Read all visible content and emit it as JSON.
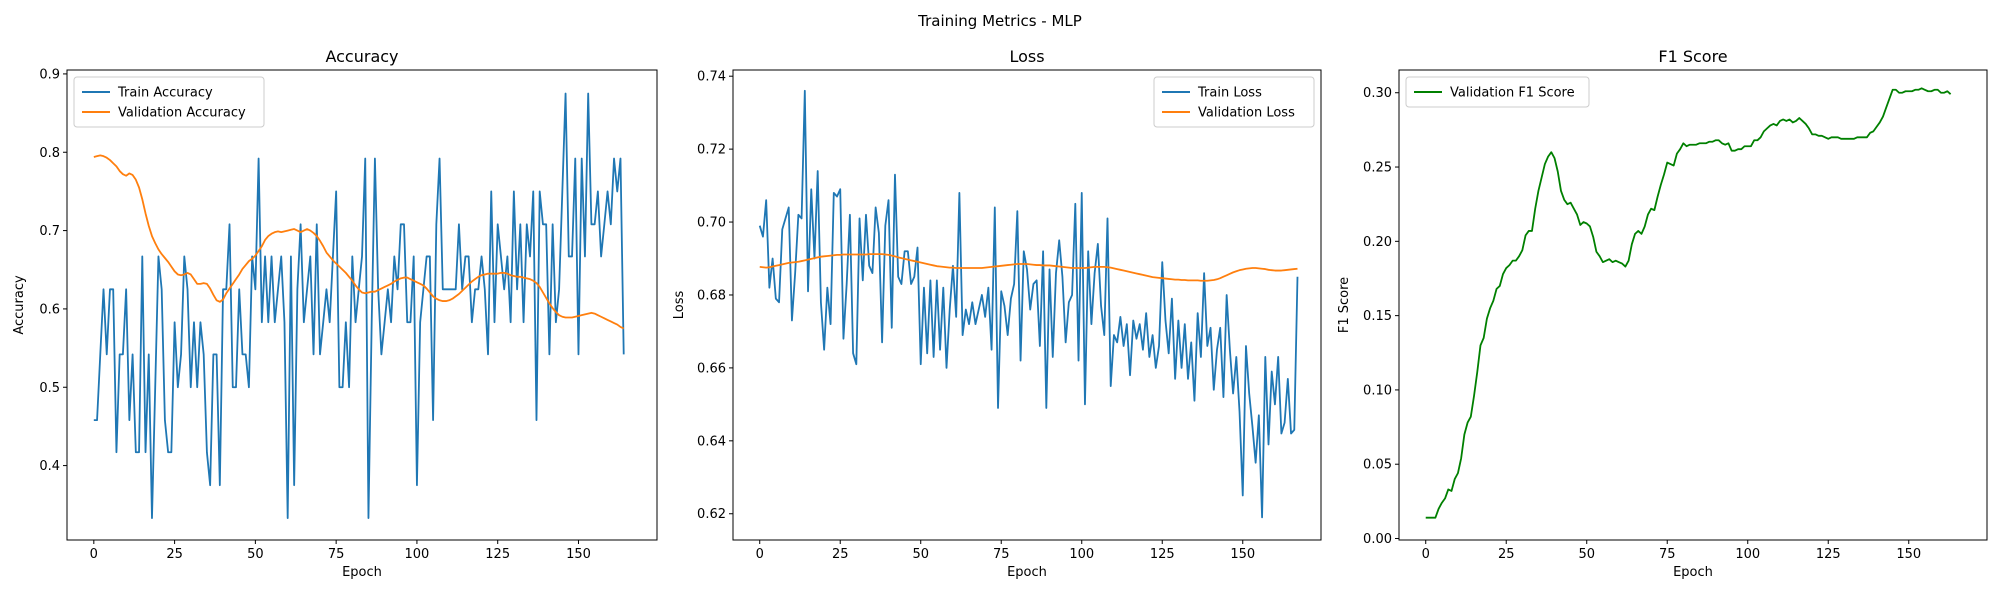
{
  "suptitle": "Training Metrics - MLP",
  "colors": {
    "blue": "#1f77b4",
    "orange": "#ff7f0e",
    "green": "#008000"
  },
  "chart_data": [
    {
      "type": "line",
      "title": "Accuracy",
      "xlabel": "Epoch",
      "ylabel": "Accuracy",
      "xlim": [
        -8.3,
        174.3
      ],
      "ylim": [
        0.305,
        0.905
      ],
      "xticks": [
        0,
        25,
        50,
        75,
        100,
        125,
        150
      ],
      "yticks": [
        0.4,
        0.5,
        0.6,
        0.7,
        0.8,
        0.9
      ],
      "legend": "upper-left",
      "series": [
        {
          "name": "Train Accuracy",
          "color": "#1f77b4",
          "values": [
            0.458,
            0.458,
            0.542,
            0.625,
            0.542,
            0.625,
            0.625,
            0.417,
            0.542,
            0.542,
            0.625,
            0.458,
            0.542,
            0.417,
            0.417,
            0.667,
            0.417,
            0.542,
            0.333,
            0.5,
            0.667,
            0.625,
            0.458,
            0.417,
            0.417,
            0.583,
            0.5,
            0.542,
            0.667,
            0.625,
            0.5,
            0.583,
            0.5,
            0.583,
            0.542,
            0.417,
            0.375,
            0.542,
            0.542,
            0.375,
            0.625,
            0.625,
            0.708,
            0.5,
            0.5,
            0.625,
            0.542,
            0.542,
            0.5,
            0.667,
            0.625,
            0.792,
            0.583,
            0.667,
            0.583,
            0.667,
            0.583,
            0.625,
            0.667,
            0.583,
            0.333,
            0.667,
            0.375,
            0.625,
            0.708,
            0.583,
            0.625,
            0.667,
            0.542,
            0.708,
            0.542,
            0.583,
            0.625,
            0.583,
            0.667,
            0.75,
            0.5,
            0.5,
            0.583,
            0.5,
            0.667,
            0.583,
            0.625,
            0.667,
            0.792,
            0.333,
            0.583,
            0.792,
            0.625,
            0.542,
            0.583,
            0.625,
            0.583,
            0.667,
            0.625,
            0.708,
            0.708,
            0.583,
            0.583,
            0.667,
            0.375,
            0.583,
            0.625,
            0.667,
            0.667,
            0.458,
            0.708,
            0.792,
            0.625,
            0.625,
            0.625,
            0.625,
            0.625,
            0.708,
            0.625,
            0.667,
            0.667,
            0.583,
            0.625,
            0.625,
            0.667,
            0.625,
            0.542,
            0.75,
            0.583,
            0.708,
            0.667,
            0.625,
            0.667,
            0.583,
            0.75,
            0.625,
            0.708,
            0.583,
            0.708,
            0.667,
            0.75,
            0.458,
            0.75,
            0.708,
            0.708,
            0.542,
            0.708,
            0.583,
            0.625,
            0.75,
            0.875,
            0.667,
            0.667,
            0.792,
            0.542,
            0.792,
            0.667,
            0.875,
            0.708,
            0.708,
            0.75,
            0.667,
            0.708,
            0.75,
            0.708,
            0.792,
            0.75,
            0.792,
            0.542
          ]
        },
        {
          "name": "Validation Accuracy",
          "color": "#ff7f0e",
          "values": [
            0.794,
            0.795,
            0.796,
            0.795,
            0.793,
            0.79,
            0.786,
            0.782,
            0.776,
            0.772,
            0.77,
            0.773,
            0.771,
            0.765,
            0.755,
            0.74,
            0.722,
            0.706,
            0.693,
            0.684,
            0.676,
            0.67,
            0.665,
            0.66,
            0.654,
            0.648,
            0.644,
            0.643,
            0.644,
            0.646,
            0.644,
            0.638,
            0.632,
            0.632,
            0.633,
            0.632,
            0.626,
            0.618,
            0.611,
            0.609,
            0.612,
            0.62,
            0.626,
            0.632,
            0.638,
            0.644,
            0.651,
            0.656,
            0.661,
            0.664,
            0.668,
            0.674,
            0.68,
            0.688,
            0.693,
            0.696,
            0.698,
            0.699,
            0.698,
            0.699,
            0.7,
            0.701,
            0.702,
            0.7,
            0.698,
            0.7,
            0.702,
            0.7,
            0.697,
            0.693,
            0.687,
            0.68,
            0.672,
            0.667,
            0.662,
            0.658,
            0.654,
            0.65,
            0.646,
            0.641,
            0.636,
            0.63,
            0.625,
            0.621,
            0.62,
            0.621,
            0.622,
            0.622,
            0.624,
            0.626,
            0.628,
            0.63,
            0.632,
            0.635,
            0.637,
            0.639,
            0.64,
            0.64,
            0.638,
            0.636,
            0.634,
            0.632,
            0.63,
            0.626,
            0.621,
            0.616,
            0.613,
            0.611,
            0.61,
            0.61,
            0.611,
            0.613,
            0.616,
            0.619,
            0.623,
            0.627,
            0.631,
            0.635,
            0.638,
            0.641,
            0.643,
            0.644,
            0.645,
            0.645,
            0.645,
            0.645,
            0.646,
            0.646,
            0.645,
            0.643,
            0.642,
            0.641,
            0.641,
            0.64,
            0.639,
            0.638,
            0.636,
            0.633,
            0.628,
            0.621,
            0.614,
            0.607,
            0.601,
            0.596,
            0.592,
            0.59,
            0.589,
            0.589,
            0.589,
            0.59,
            0.591,
            0.592,
            0.593,
            0.594,
            0.595,
            0.594,
            0.592,
            0.59,
            0.588,
            0.586,
            0.584,
            0.582,
            0.58,
            0.577,
            0.575
          ]
        }
      ]
    },
    {
      "type": "line",
      "title": "Loss",
      "xlabel": "Epoch",
      "ylabel": "Loss",
      "xlim": [
        -8.3,
        174.3
      ],
      "ylim": [
        0.6128,
        0.7417
      ],
      "xticks": [
        0,
        25,
        50,
        75,
        100,
        125,
        150
      ],
      "yticks": [
        0.62,
        0.64,
        0.66,
        0.68,
        0.7,
        0.72,
        0.74
      ],
      "legend": "upper-right",
      "series": [
        {
          "name": "Train Loss",
          "color": "#1f77b4",
          "values": [
            0.699,
            0.696,
            0.706,
            0.682,
            0.69,
            0.679,
            0.678,
            0.698,
            0.701,
            0.704,
            0.673,
            0.686,
            0.702,
            0.701,
            0.736,
            0.681,
            0.709,
            0.69,
            0.714,
            0.678,
            0.665,
            0.682,
            0.672,
            0.708,
            0.707,
            0.709,
            0.668,
            0.683,
            0.702,
            0.664,
            0.661,
            0.701,
            0.684,
            0.702,
            0.688,
            0.686,
            0.704,
            0.697,
            0.667,
            0.699,
            0.706,
            0.671,
            0.713,
            0.685,
            0.683,
            0.692,
            0.692,
            0.683,
            0.685,
            0.693,
            0.661,
            0.682,
            0.664,
            0.684,
            0.663,
            0.684,
            0.665,
            0.682,
            0.66,
            0.676,
            0.688,
            0.674,
            0.708,
            0.669,
            0.676,
            0.672,
            0.678,
            0.672,
            0.676,
            0.68,
            0.674,
            0.682,
            0.665,
            0.704,
            0.649,
            0.681,
            0.677,
            0.669,
            0.679,
            0.683,
            0.703,
            0.662,
            0.692,
            0.687,
            0.676,
            0.683,
            0.684,
            0.666,
            0.692,
            0.649,
            0.687,
            0.663,
            0.686,
            0.695,
            0.685,
            0.667,
            0.678,
            0.68,
            0.705,
            0.662,
            0.708,
            0.65,
            0.692,
            0.672,
            0.686,
            0.694,
            0.677,
            0.669,
            0.701,
            0.655,
            0.669,
            0.667,
            0.674,
            0.666,
            0.672,
            0.658,
            0.673,
            0.668,
            0.672,
            0.665,
            0.675,
            0.663,
            0.669,
            0.66,
            0.666,
            0.689,
            0.673,
            0.664,
            0.679,
            0.657,
            0.673,
            0.66,
            0.672,
            0.657,
            0.667,
            0.651,
            0.675,
            0.663,
            0.686,
            0.666,
            0.671,
            0.654,
            0.665,
            0.671,
            0.652,
            0.68,
            0.665,
            0.653,
            0.663,
            0.648,
            0.625,
            0.666,
            0.653,
            0.644,
            0.634,
            0.647,
            0.619,
            0.663,
            0.639,
            0.659,
            0.65,
            0.663,
            0.642,
            0.645,
            0.657,
            0.642,
            0.643,
            0.685
          ]
        },
        {
          "name": "Validation Loss",
          "color": "#ff7f0e",
          "values": [
            0.6877,
            0.6876,
            0.6875,
            0.6876,
            0.6878,
            0.688,
            0.6882,
            0.6884,
            0.6886,
            0.6888,
            0.6889,
            0.689,
            0.6891,
            0.6893,
            0.6895,
            0.6897,
            0.6899,
            0.6901,
            0.6903,
            0.6905,
            0.6906,
            0.6907,
            0.6908,
            0.6909,
            0.691,
            0.691,
            0.6911,
            0.6911,
            0.6911,
            0.6911,
            0.6911,
            0.6911,
            0.6911,
            0.6911,
            0.6912,
            0.6912,
            0.6912,
            0.6912,
            0.6912,
            0.6911,
            0.691,
            0.6908,
            0.6906,
            0.6903,
            0.6901,
            0.6899,
            0.6897,
            0.6895,
            0.6893,
            0.6891,
            0.6889,
            0.6887,
            0.6885,
            0.6883,
            0.6881,
            0.6879,
            0.6878,
            0.6877,
            0.6876,
            0.6875,
            0.6875,
            0.6874,
            0.6874,
            0.6874,
            0.6874,
            0.6874,
            0.6874,
            0.6874,
            0.6874,
            0.6874,
            0.6875,
            0.6876,
            0.6877,
            0.6878,
            0.6879,
            0.688,
            0.6881,
            0.6882,
            0.6883,
            0.6884,
            0.6885,
            0.6885,
            0.6885,
            0.6885,
            0.6884,
            0.6883,
            0.6882,
            0.6882,
            0.6881,
            0.6881,
            0.6881,
            0.688,
            0.6879,
            0.6878,
            0.6877,
            0.6876,
            0.6875,
            0.6874,
            0.6874,
            0.6874,
            0.6874,
            0.6874,
            0.6875,
            0.6876,
            0.6877,
            0.6877,
            0.6877,
            0.6877,
            0.6876,
            0.6875,
            0.6873,
            0.6871,
            0.6869,
            0.6867,
            0.6865,
            0.6863,
            0.6861,
            0.6859,
            0.6857,
            0.6855,
            0.6853,
            0.6851,
            0.6849,
            0.6848,
            0.6847,
            0.6846,
            0.6845,
            0.6844,
            0.6843,
            0.6842,
            0.6842,
            0.6841,
            0.6841,
            0.684,
            0.684,
            0.684,
            0.684,
            0.6839,
            0.6839,
            0.6839,
            0.684,
            0.6841,
            0.6843,
            0.6846,
            0.685,
            0.6854,
            0.6858,
            0.6862,
            0.6865,
            0.6868,
            0.687,
            0.6872,
            0.6873,
            0.6874,
            0.6874,
            0.6873,
            0.6872,
            0.6871,
            0.6869,
            0.6868,
            0.6867,
            0.6867,
            0.6867,
            0.6868,
            0.6869,
            0.687,
            0.6871,
            0.6872
          ]
        }
      ]
    },
    {
      "type": "line",
      "title": "F1 Score",
      "xlabel": "Epoch",
      "ylabel": "F1 Score",
      "xlim": [
        -8.3,
        174.3
      ],
      "ylim": [
        -0.001,
        0.3153
      ],
      "xticks": [
        0,
        25,
        50,
        75,
        100,
        125,
        150
      ],
      "yticks": [
        0.0,
        0.05,
        0.1,
        0.15,
        0.2,
        0.25,
        0.3
      ],
      "legend": "upper-left",
      "series": [
        {
          "name": "Validation F1 Score",
          "color": "#008000",
          "values": [
            0.014,
            0.014,
            0.014,
            0.014,
            0.02,
            0.024,
            0.027,
            0.033,
            0.032,
            0.04,
            0.044,
            0.054,
            0.07,
            0.078,
            0.082,
            0.096,
            0.112,
            0.13,
            0.135,
            0.148,
            0.155,
            0.16,
            0.168,
            0.17,
            0.178,
            0.182,
            0.184,
            0.187,
            0.187,
            0.19,
            0.194,
            0.204,
            0.207,
            0.207,
            0.222,
            0.234,
            0.243,
            0.252,
            0.257,
            0.26,
            0.256,
            0.247,
            0.234,
            0.228,
            0.225,
            0.226,
            0.222,
            0.218,
            0.211,
            0.213,
            0.212,
            0.21,
            0.203,
            0.193,
            0.19,
            0.186,
            0.187,
            0.188,
            0.186,
            0.187,
            0.186,
            0.185,
            0.183,
            0.187,
            0.198,
            0.205,
            0.207,
            0.205,
            0.21,
            0.218,
            0.222,
            0.221,
            0.23,
            0.238,
            0.245,
            0.253,
            0.252,
            0.251,
            0.259,
            0.262,
            0.266,
            0.264,
            0.265,
            0.265,
            0.265,
            0.266,
            0.266,
            0.266,
            0.267,
            0.267,
            0.268,
            0.268,
            0.266,
            0.265,
            0.266,
            0.261,
            0.261,
            0.262,
            0.262,
            0.264,
            0.264,
            0.264,
            0.268,
            0.268,
            0.27,
            0.274,
            0.276,
            0.278,
            0.279,
            0.278,
            0.281,
            0.282,
            0.281,
            0.282,
            0.28,
            0.281,
            0.283,
            0.281,
            0.279,
            0.276,
            0.272,
            0.272,
            0.271,
            0.271,
            0.27,
            0.269,
            0.27,
            0.27,
            0.27,
            0.269,
            0.269,
            0.269,
            0.269,
            0.269,
            0.27,
            0.27,
            0.27,
            0.27,
            0.273,
            0.274,
            0.277,
            0.28,
            0.284,
            0.29,
            0.296,
            0.302,
            0.302,
            0.3,
            0.3,
            0.301,
            0.301,
            0.301,
            0.302,
            0.302,
            0.303,
            0.302,
            0.301,
            0.301,
            0.302,
            0.302,
            0.3,
            0.3,
            0.301,
            0.299
          ]
        }
      ]
    }
  ]
}
